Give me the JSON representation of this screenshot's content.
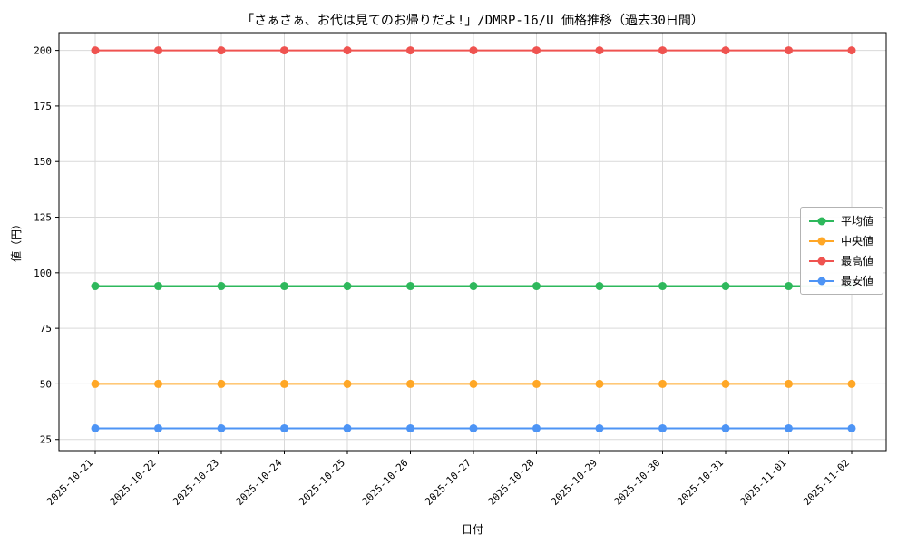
{
  "chart_data": {
    "type": "line",
    "title": "「さぁさぁ、お代は見てのお帰りだよ!」/DMRP-16/U 価格推移（過去30日間）",
    "xlabel": "日付",
    "ylabel": "値（円）",
    "x": [
      "2025-10-21",
      "2025-10-22",
      "2025-10-23",
      "2025-10-24",
      "2025-10-25",
      "2025-10-26",
      "2025-10-27",
      "2025-10-28",
      "2025-10-29",
      "2025-10-30",
      "2025-10-31",
      "2025-11-01",
      "2025-11-02"
    ],
    "series": [
      {
        "name": "平均値",
        "color": "#2eb85c",
        "values": [
          94,
          94,
          94,
          94,
          94,
          94,
          94,
          94,
          94,
          94,
          94,
          94,
          94
        ]
      },
      {
        "name": "中央値",
        "color": "#ffa726",
        "values": [
          50,
          50,
          50,
          50,
          50,
          50,
          50,
          50,
          50,
          50,
          50,
          50,
          50
        ]
      },
      {
        "name": "最高値",
        "color": "#ef5350",
        "values": [
          200,
          200,
          200,
          200,
          200,
          200,
          200,
          200,
          200,
          200,
          200,
          200,
          200
        ]
      },
      {
        "name": "最安値",
        "color": "#4d94f5",
        "values": [
          30,
          30,
          30,
          30,
          30,
          30,
          30,
          30,
          30,
          30,
          30,
          30,
          30
        ]
      }
    ],
    "yticks": [
      25,
      50,
      75,
      100,
      125,
      150,
      175,
      200
    ],
    "ylim": [
      20,
      208
    ],
    "grid": true,
    "grid_color": "#d9d9d9",
    "axis_color": "#000000",
    "legend_position": "center-right"
  }
}
